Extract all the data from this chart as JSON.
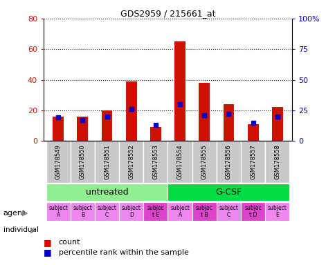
{
  "title": "GDS2959 / 215661_at",
  "samples": [
    "GSM178549",
    "GSM178550",
    "GSM178551",
    "GSM178552",
    "GSM178553",
    "GSM178554",
    "GSM178555",
    "GSM178556",
    "GSM178557",
    "GSM178558"
  ],
  "counts": [
    16,
    16,
    20,
    39,
    9,
    65,
    38,
    24,
    11,
    22
  ],
  "percentile_ranks": [
    19,
    17,
    20,
    26,
    13,
    30,
    21,
    22,
    15,
    20
  ],
  "ylim_left": [
    0,
    80
  ],
  "ylim_right": [
    0,
    100
  ],
  "yticks_left": [
    0,
    20,
    40,
    60,
    80
  ],
  "yticks_right": [
    0,
    25,
    50,
    75,
    100
  ],
  "yticklabels_right": [
    "0",
    "25",
    "50",
    "75",
    "100%"
  ],
  "groups": [
    {
      "label": "untreated",
      "start": 0,
      "end": 5,
      "color": "#90EE90"
    },
    {
      "label": "G-CSF",
      "start": 5,
      "end": 10,
      "color": "#00DD44"
    }
  ],
  "individuals": [
    "subject\nA",
    "subject\nB",
    "subject\nC",
    "subject\nD",
    "subjec\nt E",
    "subject\nA",
    "subjec\nt B",
    "subject\nC",
    "subjec\nt D",
    "subject\nE"
  ],
  "individual_highlight": [
    4,
    6,
    8
  ],
  "individual_bg_normal": "#EE88EE",
  "individual_bg_highlight": "#DD44CC",
  "bar_color": "#CC1100",
  "percentile_color": "#0000CC",
  "bar_width": 0.45,
  "grid_color": "#000000",
  "tick_label_color_left": "#CC1100",
  "tick_label_color_right": "#0000CC",
  "legend_count_color": "#CC1100",
  "legend_percentile_color": "#0000CC",
  "xtick_bg_color": "#C8C8C8",
  "xtick_sep_color": "#FFFFFF"
}
